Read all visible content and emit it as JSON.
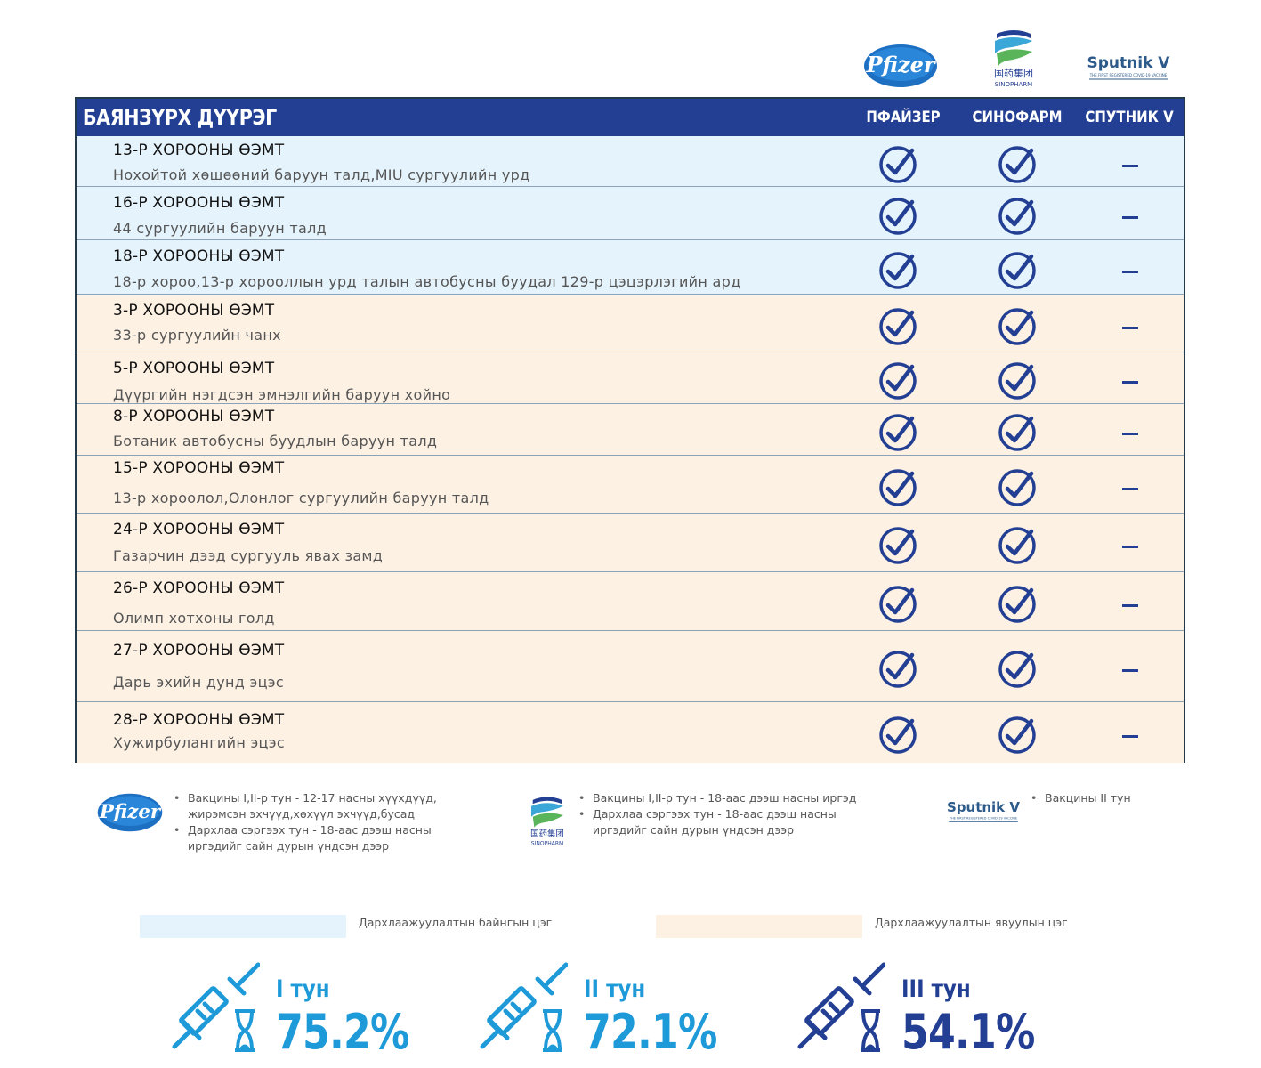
{
  "logos": {
    "pfizer": "Pfizer",
    "sinopharm_cn": "国药集团",
    "sinopharm_en": "SINOPHARM",
    "sputnik": "Sputnik V",
    "sputnik_tag": "THE FIRST REGISTERED COVID-19 VACCINE"
  },
  "table": {
    "district": "БАЯНЗҮРХ ДҮҮРЭГ",
    "columns": [
      "ПФАЙЗЕР",
      "СИНОФАРМ",
      "СПУТНИК V"
    ],
    "rows": [
      {
        "title": "13-Р ХОРООНЫ ӨЭМТ",
        "address": "Нохойтой хөшөөний баруун талд,MIU сургуулийн урд",
        "type": "fixed",
        "pfizer": true,
        "sinopharm": true,
        "sputnik": false
      },
      {
        "title": "16-Р ХОРООНЫ ӨЭМТ",
        "address": "44 сургуулийн баруун талд",
        "type": "fixed",
        "pfizer": true,
        "sinopharm": true,
        "sputnik": false
      },
      {
        "title": "18-Р ХОРООНЫ ӨЭМТ",
        "address": "18-р хороо,13-р хорооллын урд талын автобусны буудал 129-р цэцэрлэгийн ард",
        "type": "fixed",
        "pfizer": true,
        "sinopharm": true,
        "sputnik": false
      },
      {
        "title": "3-Р ХОРООНЫ ӨЭМТ",
        "address": "33-р сургуулийн чанх",
        "type": "mobile",
        "pfizer": true,
        "sinopharm": true,
        "sputnik": false
      },
      {
        "title": "5-Р ХОРООНЫ ӨЭМТ",
        "address": "Дүүргийн нэгдсэн эмнэлгийн баруун хойно",
        "type": "mobile",
        "pfizer": true,
        "sinopharm": true,
        "sputnik": false
      },
      {
        "title": "8-Р ХОРООНЫ ӨЭМТ",
        "address": "Ботаник автобусны буудлын баруун талд",
        "type": "mobile",
        "pfizer": true,
        "sinopharm": true,
        "sputnik": false
      },
      {
        "title": "15-Р ХОРООНЫ ӨЭМТ",
        "address": "13-р хороолол,Олонлог сургуулийн баруун талд",
        "type": "mobile",
        "pfizer": true,
        "sinopharm": true,
        "sputnik": false
      },
      {
        "title": "24-Р ХОРООНЫ ӨЭМТ",
        "address": "Газарчин дээд сургууль явах замд",
        "type": "mobile",
        "pfizer": true,
        "sinopharm": true,
        "sputnik": false
      },
      {
        "title": "26-Р ХОРООНЫ ӨЭМТ",
        "address": "Олимп хотхоны голд",
        "type": "mobile",
        "pfizer": true,
        "sinopharm": true,
        "sputnik": false
      },
      {
        "title": "27-Р ХОРООНЫ ӨЭМТ",
        "address": "Дарь эхийн дунд эцэс",
        "type": "mobile",
        "pfizer": true,
        "sinopharm": true,
        "sputnik": false
      },
      {
        "title": "28-Р ХОРООНЫ ӨЭМТ",
        "address": "Хужирбулангийн эцэс",
        "type": "mobile",
        "pfizer": true,
        "sinopharm": true,
        "sputnik": false
      }
    ]
  },
  "vaccine_notes": {
    "pfizer": [
      "Вакцины I,II-р тун - 12-17 насны хүүхдүүд, жирэмсэн эхчүүд,хөхүүл эхчүүд,бусад",
      "Дархлаа сэргээх тун - 18-аас дээш насны иргэдийг сайн дурын үндсэн дээр"
    ],
    "sinopharm": [
      "Вакцины I,II-р тун - 18-аас дээш насны иргэд",
      "Дархлаа сэргээх тун - 18-аас дээш насны иргэдийг сайн дурын үндсэн дээр"
    ],
    "sputnik": [
      "Вакцины II тун"
    ]
  },
  "legend": {
    "fixed": "Дархлаажуулалтын байнгын цэг",
    "mobile": "Дархлаажуулалтын явуулын цэг",
    "fixed_color": "#e5f3fc",
    "mobile_color": "#fdf1e4"
  },
  "doses": [
    {
      "label": "I тун",
      "percent": "75.2%"
    },
    {
      "label": "II тун",
      "percent": "72.1%"
    },
    {
      "label": "III тун",
      "percent": "54.1%"
    }
  ],
  "colors": {
    "header_blue": "#233f94",
    "accent_light_blue": "#1e9ad8",
    "pfizer_blue": "#1d6fc2",
    "sino_green": "#5ab45a"
  }
}
